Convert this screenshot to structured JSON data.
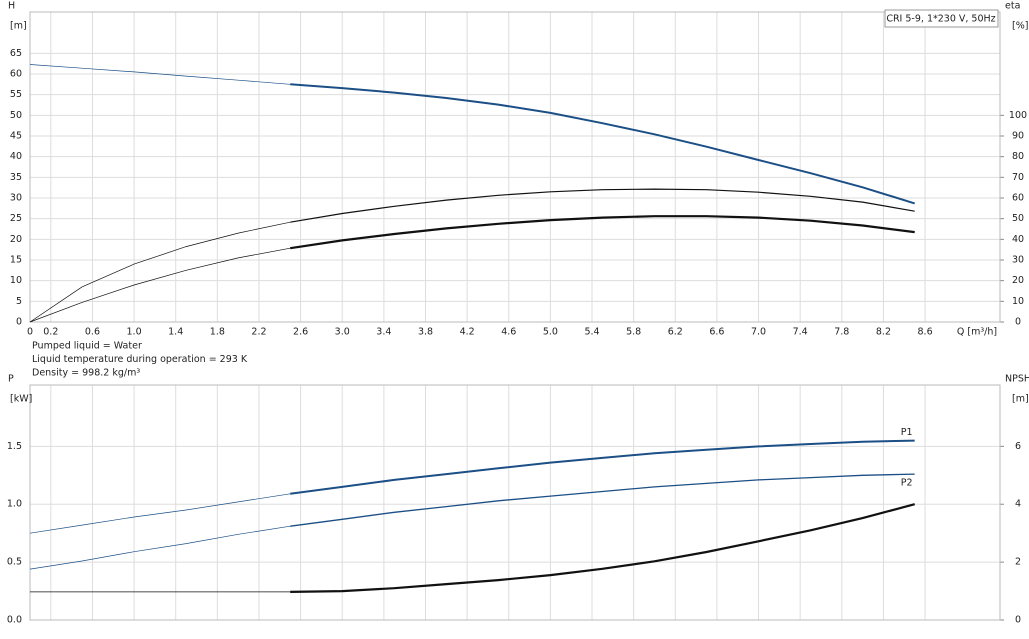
{
  "chart_data": [
    {
      "type": "line",
      "box_label": "CRI 5-9, 1*230 V, 50Hz",
      "y_label": [
        "H",
        "[m]"
      ],
      "y2_label": [
        "eta",
        "[%]"
      ],
      "x_label": "Q [m³/h]",
      "notes": [
        "Pumped liquid = Water",
        "Liquid temperature during operation = 293 K",
        "Density = 998.2 kg/m³"
      ],
      "operating_range_start": 2.5,
      "xlim": [
        0,
        9.32
      ],
      "xticks": [
        0,
        0.2,
        0.6,
        {
          "value": 1,
          "label": "1.0"
        },
        1.4,
        1.8,
        2.2,
        2.6,
        {
          "value": 3,
          "label": "3.0"
        },
        3.4,
        3.8,
        4.2,
        4.6,
        {
          "value": 5,
          "label": "5.0"
        },
        5.4,
        5.8,
        6.2,
        6.6,
        {
          "value": 7,
          "label": "7.0"
        },
        7.4,
        7.8,
        8.2,
        8.6
      ],
      "ylim": [
        0,
        75
      ],
      "yticks": [
        0,
        5,
        10,
        15,
        20,
        25,
        30,
        35,
        40,
        45,
        50,
        55,
        60,
        65
      ],
      "y2lim": [
        0,
        150
      ],
      "y2ticks": [
        0,
        10,
        20,
        30,
        40,
        50,
        60,
        70,
        80,
        90,
        100
      ],
      "grid": true,
      "series": [
        {
          "color": "#1b4f86",
          "line_width": 2,
          "x": [
            0,
            0.5,
            1,
            1.5,
            2,
            2.5,
            3,
            3.5,
            4,
            4.5,
            5,
            5.5,
            6,
            6.5,
            7,
            7.5,
            8,
            8.5
          ],
          "values": [
            62.3,
            61.4,
            60.5,
            59.5,
            58.5,
            57.5,
            56.6,
            55.5,
            54.2,
            52.6,
            50.6,
            48.1,
            45.4,
            42.4,
            39.2,
            36.0,
            32.6,
            28.7
          ]
        },
        {
          "color": "#111111",
          "line_width": 1.2,
          "axis": "y2",
          "x": [
            0,
            0.5,
            1,
            1.5,
            2,
            2.5,
            3,
            3.5,
            4,
            4.5,
            5,
            5.5,
            6,
            6.5,
            7,
            7.5,
            8,
            8.5
          ],
          "values": [
            0,
            17,
            28,
            36.5,
            43,
            48.3,
            52.5,
            56,
            59,
            61.3,
            63,
            64,
            64.3,
            64,
            62.8,
            60.8,
            58,
            53.6
          ]
        },
        {
          "color": "#111111",
          "line_width": 2.2,
          "axis": "y2",
          "x": [
            0,
            0.5,
            1,
            1.5,
            2,
            2.5,
            3,
            3.5,
            4,
            4.5,
            5,
            5.5,
            6,
            6.5,
            7,
            7.5,
            8,
            8.5
          ],
          "values": [
            0,
            9.5,
            17.9,
            25,
            31,
            35.7,
            39.5,
            42.6,
            45.3,
            47.5,
            49.3,
            50.5,
            51.2,
            51.2,
            50.5,
            49,
            46.7,
            43.5
          ]
        }
      ]
    },
    {
      "type": "line",
      "y_label": [
        "P",
        "[kW]"
      ],
      "y2_label": [
        "NPSH",
        "[m]"
      ],
      "operating_range_start": 2.5,
      "xlim": [
        0,
        9.32
      ],
      "ylim": [
        0,
        2.03
      ],
      "yticks": [
        {
          "value": 0,
          "label": "0.0"
        },
        0.5,
        {
          "value": 1,
          "label": "1.0"
        },
        1.5
      ],
      "y2lim": [
        0,
        8.12
      ],
      "y2ticks": [
        0,
        2,
        4,
        6
      ],
      "grid": true,
      "series": [
        {
          "name": "P1",
          "color": "#1b4f86",
          "line_width": 2,
          "x": [
            0,
            0.5,
            1,
            1.5,
            2,
            2.5,
            3,
            3.5,
            4,
            4.5,
            5,
            5.5,
            6,
            6.5,
            7,
            7.5,
            8,
            8.5
          ],
          "values": [
            0.75,
            0.82,
            0.89,
            0.95,
            1.02,
            1.09,
            1.15,
            1.21,
            1.26,
            1.31,
            1.36,
            1.4,
            1.44,
            1.47,
            1.5,
            1.52,
            1.54,
            1.55
          ]
        },
        {
          "name": "P2",
          "color": "#1b4f86",
          "line_width": 1.3,
          "x": [
            0,
            0.5,
            1,
            1.5,
            2,
            2.5,
            3,
            3.5,
            4,
            4.5,
            5,
            5.5,
            6,
            6.5,
            7,
            7.5,
            8,
            8.5
          ],
          "values": [
            0.44,
            0.51,
            0.59,
            0.66,
            0.74,
            0.81,
            0.87,
            0.93,
            0.98,
            1.03,
            1.07,
            1.11,
            1.15,
            1.18,
            1.21,
            1.23,
            1.25,
            1.26
          ]
        },
        {
          "color": "#111111",
          "line_width": 2.2,
          "axis": "y2",
          "x": [
            0,
            0.5,
            1,
            1.5,
            2,
            2.5,
            3,
            3.5,
            4,
            4.5,
            5,
            5.5,
            6,
            6.5,
            7,
            7.5,
            8,
            8.5
          ],
          "values": [
            0.97,
            0.97,
            0.97,
            0.97,
            0.97,
            0.97,
            1.0,
            1.1,
            1.24,
            1.38,
            1.55,
            1.77,
            2.03,
            2.35,
            2.72,
            3.1,
            3.52,
            4.0
          ]
        }
      ]
    }
  ]
}
